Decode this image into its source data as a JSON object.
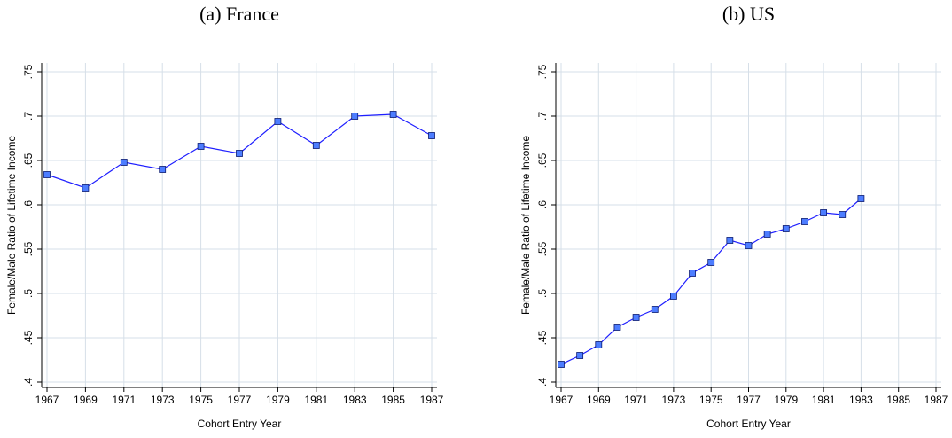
{
  "chart_data": [
    {
      "type": "line",
      "title": "(a) France",
      "x_label": "Cohort Entry Year",
      "y_label": "Female/Male Ratio of Lifetime Income",
      "x": [
        1967,
        1969,
        1971,
        1973,
        1975,
        1977,
        1979,
        1981,
        1983,
        1985,
        1987
      ],
      "values": [
        0.634,
        0.619,
        0.648,
        0.64,
        0.666,
        0.658,
        0.694,
        0.667,
        0.7,
        0.702,
        0.678
      ],
      "color": "#1f1fff",
      "marker_color": "#4d7dff",
      "xlim": [
        1967,
        1987
      ],
      "xticks": [
        1967,
        1969,
        1971,
        1973,
        1975,
        1977,
        1979,
        1981,
        1983,
        1985,
        1987
      ],
      "ylim": [
        0.4,
        0.75
      ],
      "yticks": [
        {
          "value": 0.4,
          "label": ".4"
        },
        {
          "value": 0.45,
          "label": ".45"
        },
        {
          "value": 0.5,
          "label": ".5"
        },
        {
          "value": 0.55,
          "label": ".55"
        },
        {
          "value": 0.6,
          "label": ".6"
        },
        {
          "value": 0.65,
          "label": ".65"
        },
        {
          "value": 0.7,
          "label": ".7"
        },
        {
          "value": 0.75,
          "label": ".75"
        }
      ],
      "grid": true
    },
    {
      "type": "line",
      "title": "(b) US",
      "x_label": "Cohort Entry Year",
      "y_label": "Female/Male Ratio of Lifetime Income",
      "x": [
        1967,
        1968,
        1969,
        1970,
        1971,
        1972,
        1973,
        1974,
        1975,
        1976,
        1977,
        1978,
        1979,
        1980,
        1981,
        1982,
        1983
      ],
      "values": [
        0.42,
        0.43,
        0.442,
        0.462,
        0.473,
        0.482,
        0.497,
        0.523,
        0.535,
        0.56,
        0.554,
        0.567,
        0.573,
        0.581,
        0.591,
        0.589,
        0.607
      ],
      "color": "#1f1fff",
      "marker_color": "#4d7dff",
      "xlim": [
        1967,
        1987
      ],
      "xticks": [
        1967,
        1969,
        1971,
        1973,
        1975,
        1977,
        1979,
        1981,
        1983,
        1985,
        1987
      ],
      "ylim": [
        0.4,
        0.75
      ],
      "yticks": [
        {
          "value": 0.4,
          "label": ".4"
        },
        {
          "value": 0.45,
          "label": ".45"
        },
        {
          "value": 0.5,
          "label": ".5"
        },
        {
          "value": 0.55,
          "label": ".55"
        },
        {
          "value": 0.6,
          "label": ".6"
        },
        {
          "value": 0.65,
          "label": ".65"
        },
        {
          "value": 0.7,
          "label": ".7"
        },
        {
          "value": 0.75,
          "label": ".75"
        }
      ],
      "grid": true
    }
  ]
}
